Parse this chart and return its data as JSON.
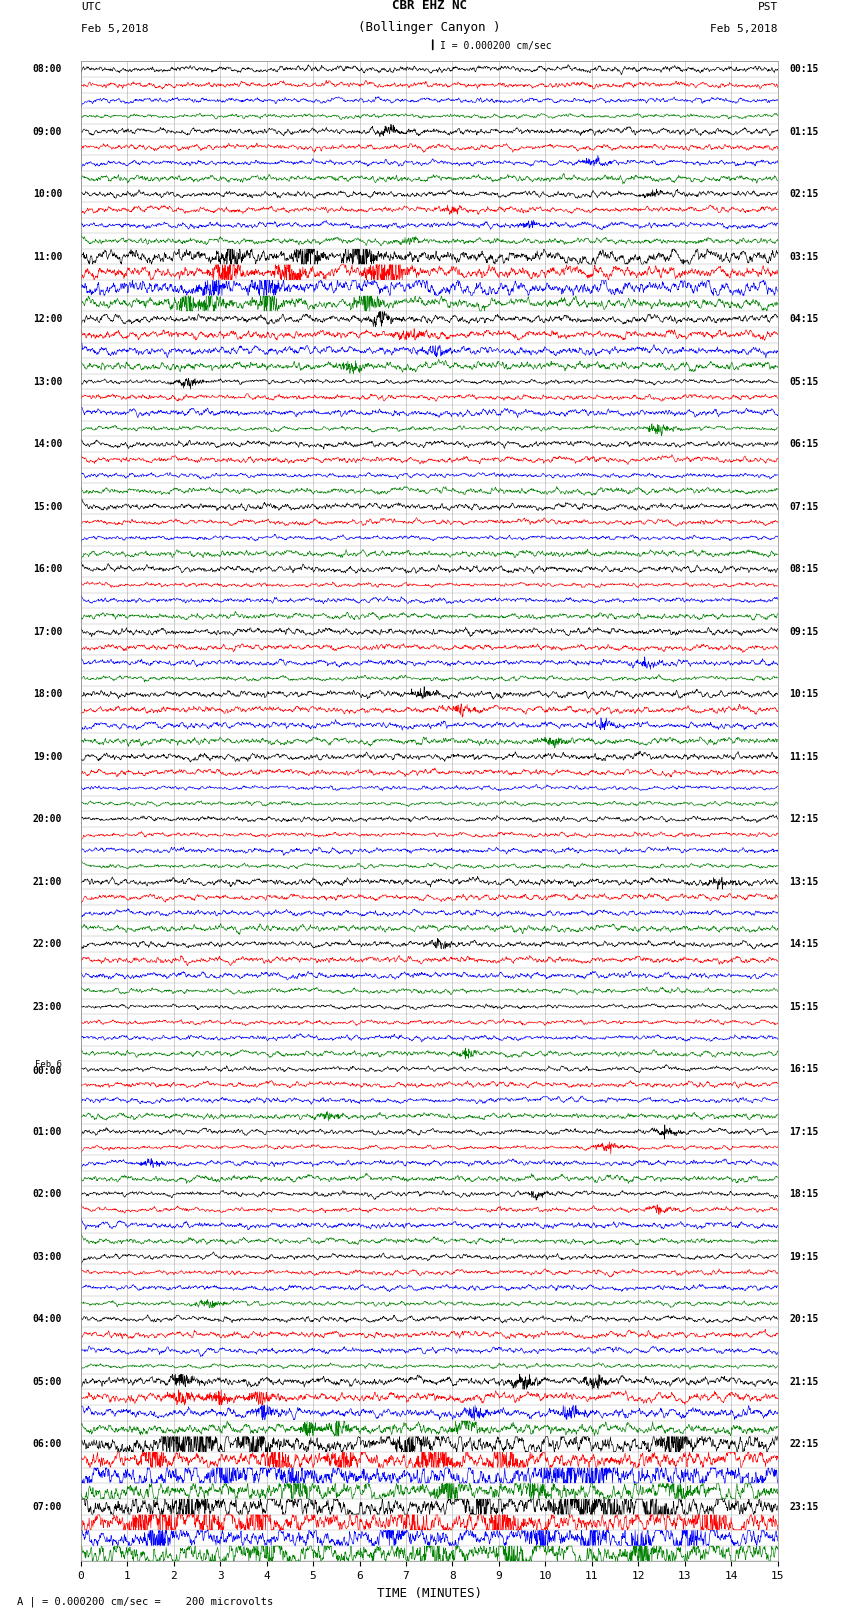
{
  "title_line1": "CBR EHZ NC",
  "title_line2": "(Bollinger Canyon )",
  "scale_bar_label": "I = 0.000200 cm/sec",
  "label_utc": "UTC",
  "label_date_left": "Feb 5,2018",
  "label_pst": "PST",
  "label_date_right": "Feb 5,2018",
  "xlabel": "TIME (MINUTES)",
  "footnote": "A | = 0.000200 cm/sec =    200 microvolts",
  "x_min": 0,
  "x_max": 15,
  "x_ticks": [
    0,
    1,
    2,
    3,
    4,
    5,
    6,
    7,
    8,
    9,
    10,
    11,
    12,
    13,
    14,
    15
  ],
  "colors": [
    "black",
    "red",
    "blue",
    "green"
  ],
  "background": "white",
  "grid_color": "#aaaaaa",
  "fig_width": 8.5,
  "fig_height": 16.13,
  "dpi": 100,
  "num_hours": 24,
  "traces_per_hour": 4,
  "utc_hour_labels": [
    "08:00",
    "09:00",
    "10:00",
    "11:00",
    "12:00",
    "13:00",
    "14:00",
    "15:00",
    "16:00",
    "17:00",
    "18:00",
    "19:00",
    "20:00",
    "21:00",
    "22:00",
    "23:00",
    "Feb 6\n00:00",
    "01:00",
    "02:00",
    "03:00",
    "04:00",
    "05:00",
    "06:00",
    "07:00"
  ],
  "pst_hour_labels": [
    "00:15",
    "01:15",
    "02:15",
    "03:15",
    "04:15",
    "05:15",
    "06:15",
    "07:15",
    "08:15",
    "09:15",
    "10:15",
    "11:15",
    "12:15",
    "13:15",
    "14:15",
    "15:15",
    "16:15",
    "17:15",
    "18:15",
    "19:15",
    "20:15",
    "21:15",
    "22:15",
    "23:15"
  ]
}
